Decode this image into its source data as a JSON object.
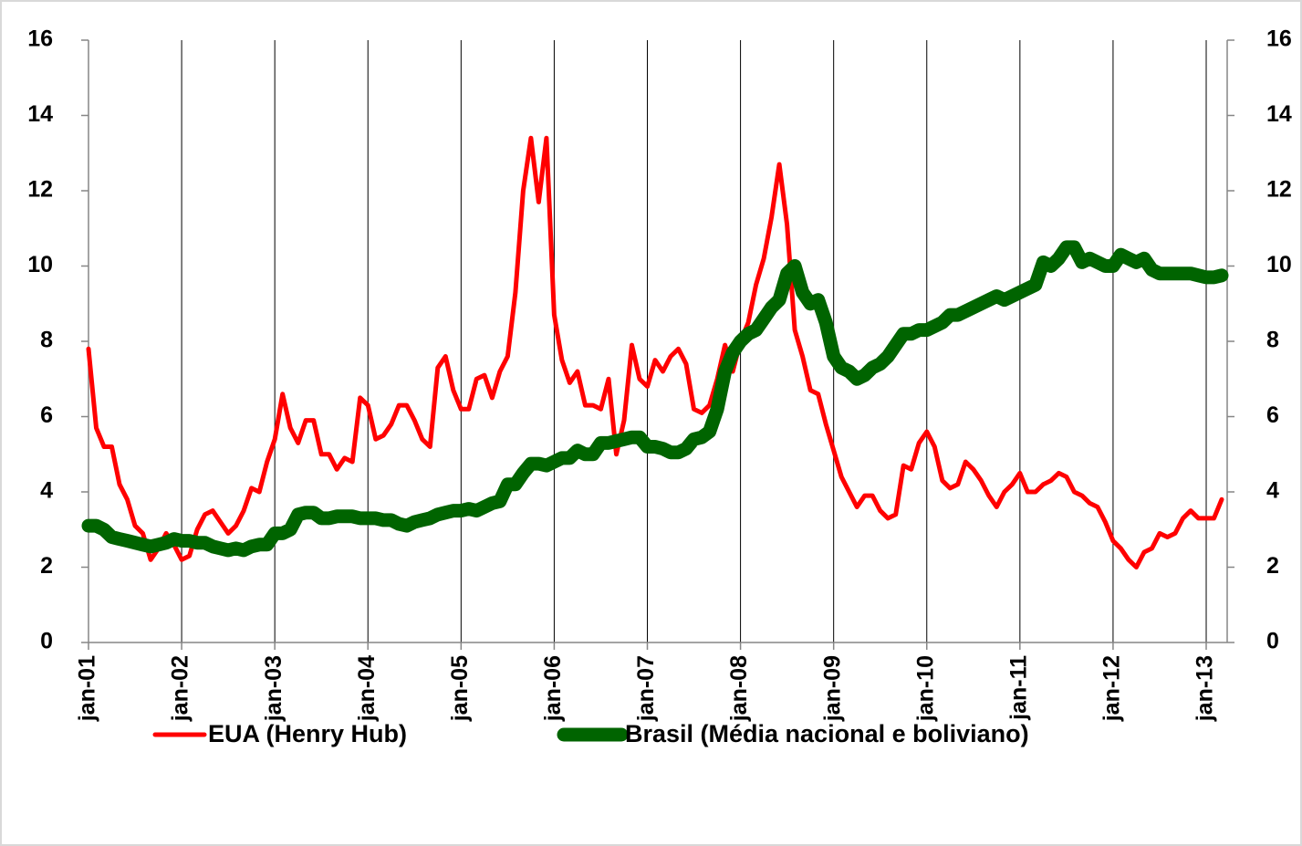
{
  "chart_data": {
    "type": "line",
    "categories": [
      "jan-01",
      null,
      null,
      null,
      null,
      null,
      null,
      null,
      null,
      null,
      null,
      null,
      "jan-02",
      null,
      null,
      null,
      null,
      null,
      null,
      null,
      null,
      null,
      null,
      null,
      "jan-03",
      null,
      null,
      null,
      null,
      null,
      null,
      null,
      null,
      null,
      null,
      null,
      "jan-04",
      null,
      null,
      null,
      null,
      null,
      null,
      null,
      null,
      null,
      null,
      null,
      "jan-05",
      null,
      null,
      null,
      null,
      null,
      null,
      null,
      null,
      null,
      null,
      null,
      "jan-06",
      null,
      null,
      null,
      null,
      null,
      null,
      null,
      null,
      null,
      null,
      null,
      "jan-07",
      null,
      null,
      null,
      null,
      null,
      null,
      null,
      null,
      null,
      null,
      null,
      "jan-08",
      null,
      null,
      null,
      null,
      null,
      null,
      null,
      null,
      null,
      null,
      null,
      "jan-09",
      null,
      null,
      null,
      null,
      null,
      null,
      null,
      null,
      null,
      null,
      null,
      "jan-10",
      null,
      null,
      null,
      null,
      null,
      null,
      null,
      null,
      null,
      null,
      null,
      "jan-11",
      null,
      null,
      null,
      null,
      null,
      null,
      null,
      null,
      null,
      null,
      null,
      "jan-12",
      null,
      null,
      null,
      null,
      null,
      null,
      null,
      null,
      null,
      null,
      null,
      "jan-13",
      null,
      null
    ],
    "series": [
      {
        "name": "EUA (Henry Hub)",
        "color": "#ff0000",
        "width": 5,
        "values": [
          7.8,
          5.7,
          5.2,
          5.2,
          4.2,
          3.8,
          3.1,
          2.9,
          2.2,
          2.5,
          2.9,
          2.6,
          2.2,
          2.3,
          3.0,
          3.4,
          3.5,
          3.2,
          2.9,
          3.1,
          3.5,
          4.1,
          4.0,
          4.8,
          5.4,
          6.6,
          5.7,
          5.3,
          5.9,
          5.9,
          5.0,
          5.0,
          4.6,
          4.9,
          4.8,
          6.5,
          6.3,
          5.4,
          5.5,
          5.8,
          6.3,
          6.3,
          5.9,
          5.4,
          5.2,
          7.3,
          7.6,
          6.7,
          6.2,
          6.2,
          7.0,
          7.1,
          6.5,
          7.2,
          7.6,
          9.3,
          12.0,
          13.4,
          11.7,
          13.4,
          8.7,
          7.5,
          6.9,
          7.2,
          6.3,
          6.3,
          6.2,
          7.0,
          5.0,
          5.9,
          7.9,
          7.0,
          6.8,
          7.5,
          7.2,
          7.6,
          7.8,
          7.4,
          6.2,
          6.1,
          6.3,
          7.0,
          7.9,
          7.2,
          8.0,
          8.5,
          9.5,
          10.2,
          11.3,
          12.7,
          11.1,
          8.3,
          7.6,
          6.7,
          6.6,
          5.8,
          5.1,
          4.4,
          4.0,
          3.6,
          3.9,
          3.9,
          3.5,
          3.3,
          3.4,
          4.7,
          4.6,
          5.3,
          5.6,
          5.2,
          4.3,
          4.1,
          4.2,
          4.8,
          4.6,
          4.3,
          3.9,
          3.6,
          4.0,
          4.2,
          4.5,
          4.0,
          4.0,
          4.2,
          4.3,
          4.5,
          4.4,
          4.0,
          3.9,
          3.7,
          3.6,
          3.2,
          2.7,
          2.5,
          2.2,
          2.0,
          2.4,
          2.5,
          2.9,
          2.8,
          2.9,
          3.3,
          3.5,
          3.3,
          3.3,
          3.3,
          3.8
        ]
      },
      {
        "name": "Brasil (Média nacional e boliviano)",
        "color": "#006400",
        "width": 15,
        "values": [
          3.1,
          3.1,
          3.0,
          2.8,
          2.75,
          2.7,
          2.65,
          2.6,
          2.55,
          2.6,
          2.65,
          2.75,
          2.7,
          2.7,
          2.65,
          2.65,
          2.55,
          2.5,
          2.45,
          2.5,
          2.45,
          2.55,
          2.6,
          2.6,
          2.9,
          2.9,
          3.0,
          3.4,
          3.45,
          3.45,
          3.3,
          3.3,
          3.35,
          3.35,
          3.35,
          3.3,
          3.3,
          3.3,
          3.25,
          3.25,
          3.15,
          3.1,
          3.2,
          3.25,
          3.3,
          3.4,
          3.45,
          3.5,
          3.5,
          3.55,
          3.5,
          3.6,
          3.7,
          3.75,
          4.2,
          4.2,
          4.5,
          4.75,
          4.75,
          4.7,
          4.8,
          4.9,
          4.9,
          5.1,
          5.0,
          5.0,
          5.3,
          5.3,
          5.35,
          5.4,
          5.45,
          5.45,
          5.2,
          5.2,
          5.15,
          5.05,
          5.05,
          5.15,
          5.4,
          5.45,
          5.6,
          6.2,
          7.2,
          7.7,
          8.0,
          8.2,
          8.3,
          8.6,
          8.9,
          9.1,
          9.8,
          10.0,
          9.3,
          9.0,
          9.1,
          8.5,
          7.6,
          7.3,
          7.2,
          7.0,
          7.1,
          7.3,
          7.4,
          7.6,
          7.9,
          8.2,
          8.2,
          8.3,
          8.3,
          8.4,
          8.5,
          8.7,
          8.7,
          8.8,
          8.9,
          9.0,
          9.1,
          9.2,
          9.1,
          9.2,
          9.3,
          9.4,
          9.5,
          10.1,
          10.0,
          10.2,
          10.5,
          10.5,
          10.1,
          10.2,
          10.1,
          10.0,
          10.0,
          10.3,
          10.2,
          10.1,
          10.2,
          9.9,
          9.8,
          9.8,
          9.8,
          9.8,
          9.8,
          9.75,
          9.7,
          9.7,
          9.75
        ]
      }
    ],
    "ylim": [
      0,
      16
    ],
    "yticks": [
      0,
      2,
      4,
      6,
      8,
      10,
      12,
      14,
      16
    ],
    "y2lim": [
      0,
      16
    ],
    "y2ticks": [
      0,
      2,
      4,
      6,
      8,
      10,
      12,
      14,
      16
    ],
    "grid": true,
    "legend": "bottom"
  }
}
